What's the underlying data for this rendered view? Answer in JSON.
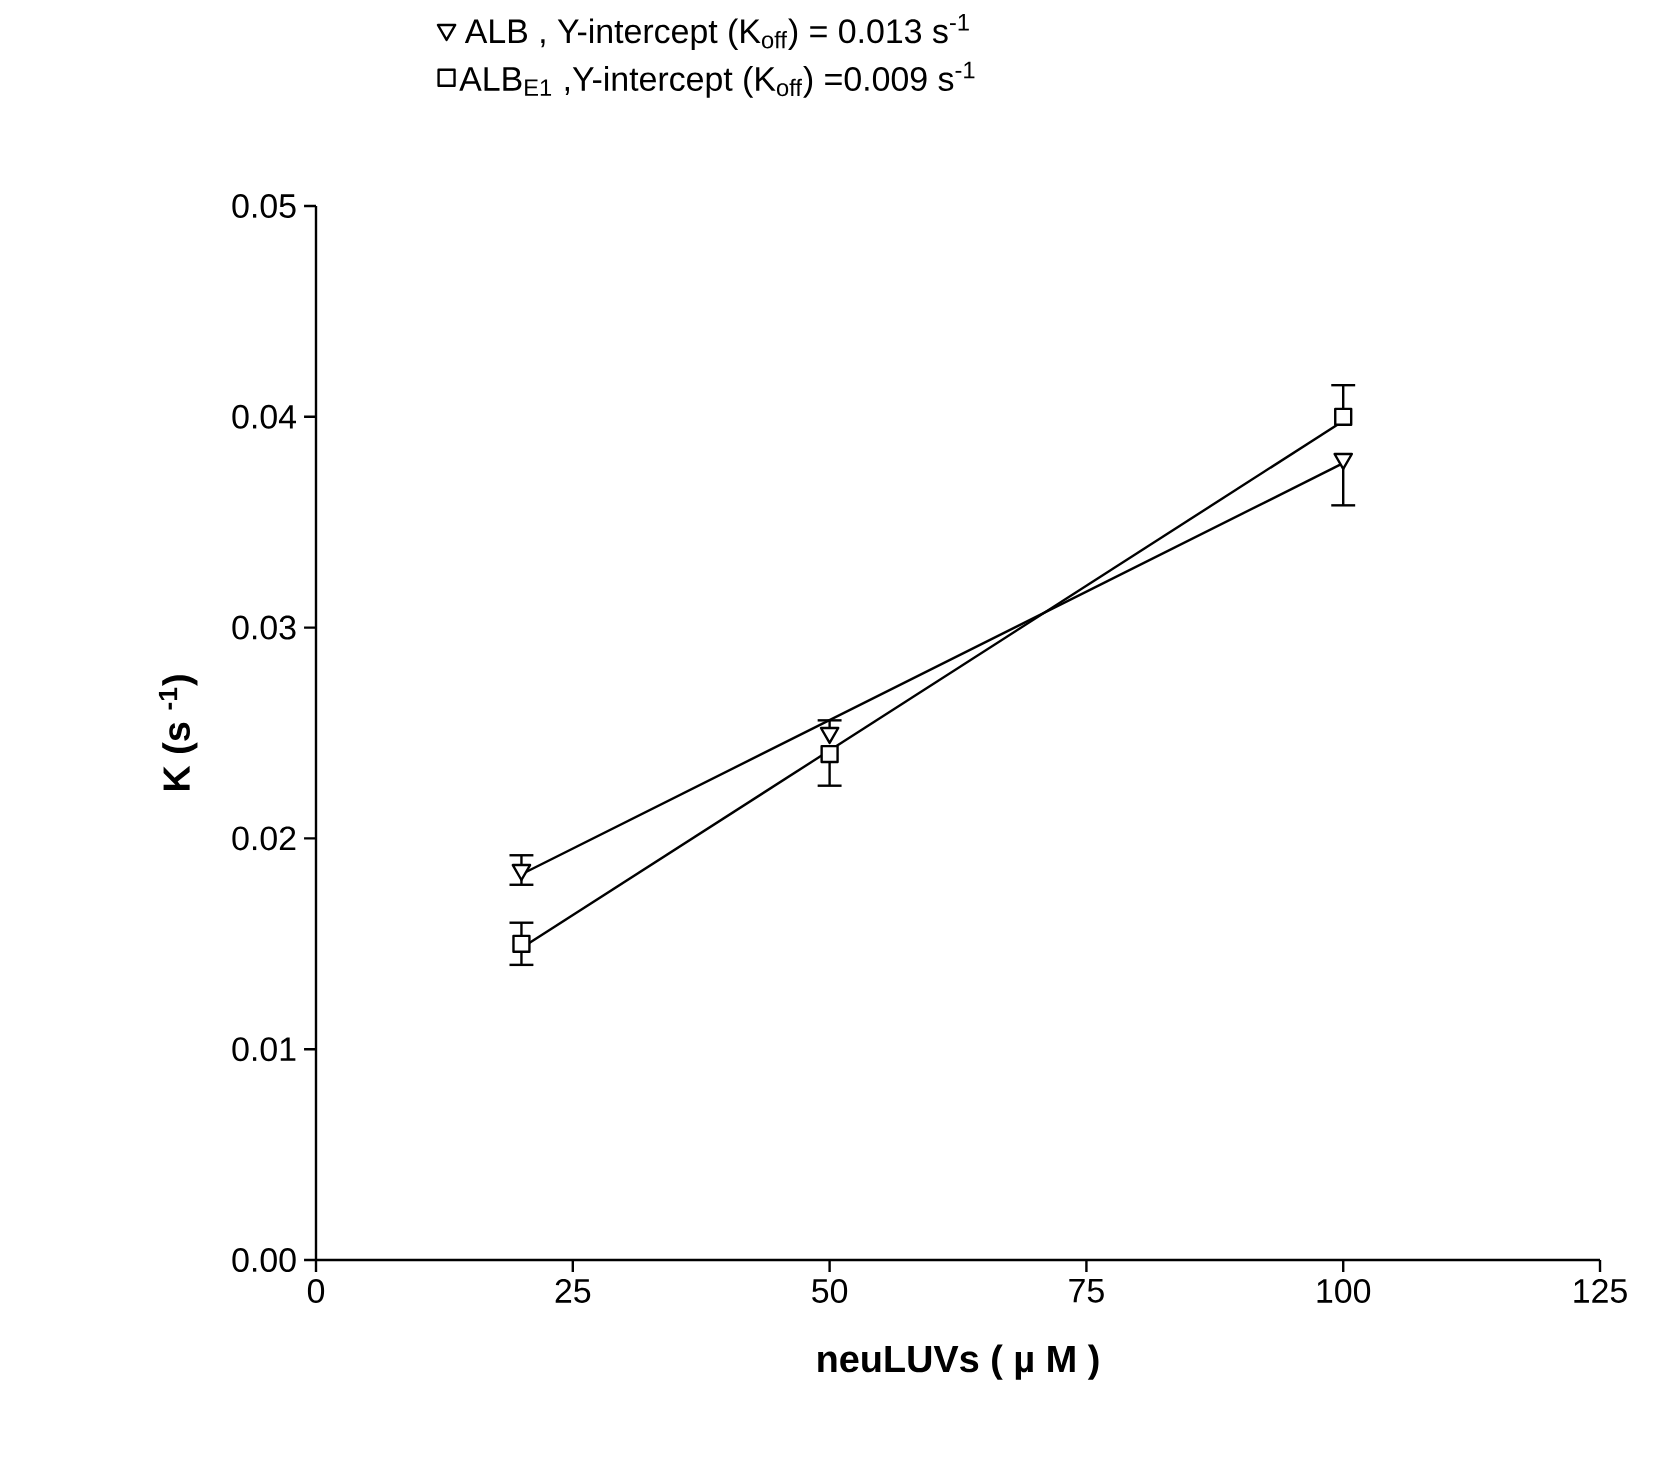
{
  "chart_data": {
    "type": "scatter",
    "xlabel": "neuLUVs ( µ M )",
    "ylabel": "K (s $^{-1}$)",
    "xlim": [
      0,
      125
    ],
    "xticks": [
      0,
      25,
      50,
      75,
      100,
      125
    ],
    "ylim": [
      0,
      0.05
    ],
    "yticks": [
      {
        "value": 0,
        "label": "0.00"
      },
      {
        "value": 0.01,
        "label": "0.01"
      },
      {
        "value": 0.02,
        "label": "0.02"
      },
      {
        "value": 0.03,
        "label": "0.03"
      },
      {
        "value": 0.04,
        "label": "0.04"
      },
      {
        "value": 0.05,
        "label": "0.05"
      }
    ],
    "legend": "top",
    "grid": false,
    "series": [
      {
        "type": "line",
        "color": "#000000",
        "x": [
          20,
          100
        ],
        "values": [
          0.0183,
          0.0378
        ]
      },
      {
        "type": "line",
        "color": "#000000",
        "x": [
          20,
          100
        ],
        "values": [
          0.0148,
          0.0398
        ]
      },
      {
        "name": "ALB ,   Y-intercept (K$_{off}$) = 0.013 s$^{-1}$",
        "color": "#000000",
        "marker": "triangle",
        "x": [
          20,
          50,
          100
        ],
        "values": [
          0.0185,
          0.025,
          0.038
        ],
        "errors": [
          0.0007,
          [
            0.025,
            0.0256
          ],
          [
            0.0358,
            0.038
          ]
        ]
      },
      {
        "name": "ALB$_{E1}$ ,Y-intercept (K$_{off}$) =0.009 s$^{-1}$",
        "color": "#000000",
        "marker": "square",
        "x": [
          20,
          50,
          100
        ],
        "values": [
          0.015,
          0.024,
          0.04
        ],
        "errors": [
          0.001,
          [
            0.0225,
            0.024
          ],
          [
            0.04,
            0.0415
          ]
        ]
      }
    ]
  }
}
